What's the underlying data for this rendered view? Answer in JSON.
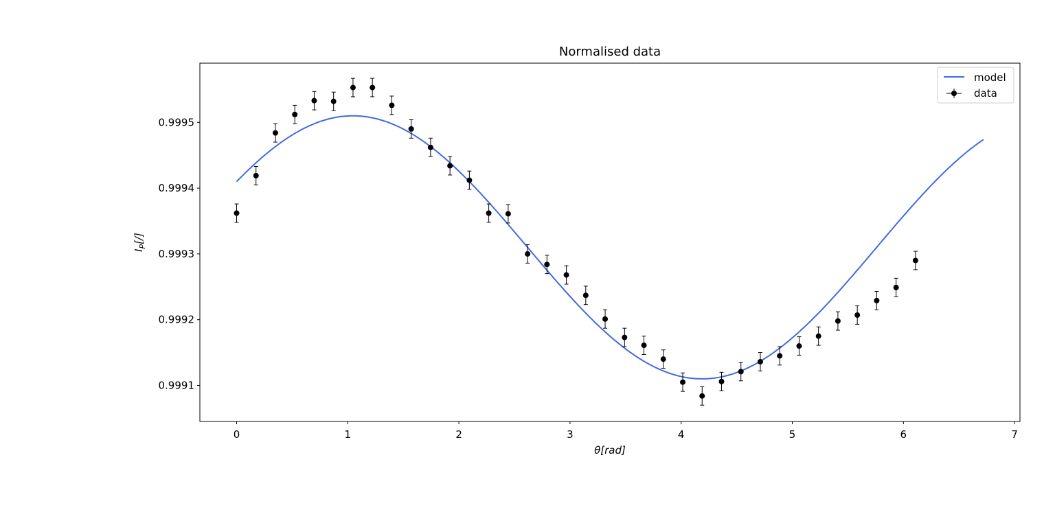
{
  "chart_data": {
    "type": "scatter",
    "title": "Normalised data",
    "xlabel": "θ[rad]",
    "ylabel": "I_P[/]",
    "ylabel_main": "I",
    "ylabel_sub": "P",
    "ylabel_rest": "[/]",
    "xlim": [
      -0.335,
      7.05
    ],
    "ylim": [
      0.99904725,
      0.99599
    ],
    "xticks": [
      0,
      1,
      2,
      3,
      4,
      5,
      6,
      7
    ],
    "xtick_labels": [
      "0",
      "1",
      "2",
      "3",
      "4",
      "5",
      "6",
      "7"
    ],
    "yticks": [
      0.9991,
      0.9992,
      0.9993,
      0.9994,
      0.9995
    ],
    "ytick_labels": [
      "0.9991",
      "0.9992",
      "0.9993",
      "0.9994",
      "0.9995"
    ],
    "grid": false,
    "legend_position": "top-right",
    "series": [
      {
        "name": "model",
        "kind": "line",
        "color": "#4169e1",
        "model": {
          "offset": 0.99931,
          "amplitude": 0.0002,
          "phase": 1.047,
          "x_start": 0,
          "x_end": 6.72
        }
      },
      {
        "name": "data",
        "kind": "errorbar",
        "color": "#000000",
        "x": [
          0.0,
          0.1745,
          0.349,
          0.5236,
          0.6981,
          0.8727,
          1.0472,
          1.2217,
          1.3963,
          1.5708,
          1.7453,
          1.9199,
          2.0944,
          2.2689,
          2.4435,
          2.618,
          2.7925,
          2.9671,
          3.1416,
          3.3161,
          3.4907,
          3.6652,
          3.8397,
          4.0143,
          4.1888,
          4.3633,
          4.5379,
          4.7124,
          4.8869,
          5.0615,
          5.236,
          5.4105,
          5.5851,
          5.7596,
          5.9341,
          6.1087
        ],
        "y": [
          0.999362,
          0.999419,
          0.999484,
          0.999512,
          0.999533,
          0.999532,
          0.999553,
          0.999553,
          0.999526,
          0.99949,
          0.999462,
          0.999434,
          0.999412,
          0.999362,
          0.999361,
          0.9993,
          0.999284,
          0.999268,
          0.999237,
          0.999201,
          0.999173,
          0.999161,
          0.99914,
          0.999105,
          0.999084,
          0.999106,
          0.999121,
          0.999136,
          0.999145,
          0.99916,
          0.999175,
          0.999198,
          0.999207,
          0.999229,
          0.999249,
          0.99929
        ],
        "yerr": 1.4e-05
      }
    ]
  }
}
